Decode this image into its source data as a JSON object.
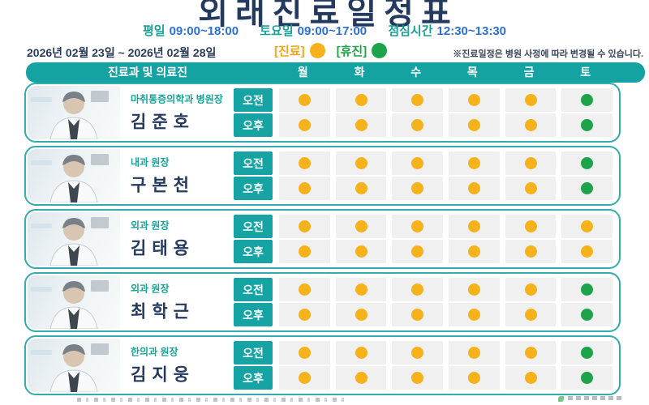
{
  "header": {
    "title": "외래진료일정표",
    "hours": [
      {
        "label": "평일",
        "time": "09:00~18:00"
      },
      {
        "label": "토요일",
        "time": "09:00~17:00"
      },
      {
        "label": "점심시간",
        "time": "12:30~13:30"
      }
    ],
    "date_range": "2026년 02월 23일 ~ 2026년 02월 28일",
    "legend": [
      {
        "label": "[진료]",
        "status": "진료",
        "color": "#F6B21B"
      },
      {
        "label": "[휴진]",
        "status": "휴진",
        "color": "#1DA34A"
      }
    ],
    "notice": "※진료일정은 병원 사정에 따라 변경될 수 있습니다."
  },
  "table": {
    "staff_header": "진료과 및 의료진",
    "days": [
      "월",
      "화",
      "수",
      "목",
      "금",
      "토"
    ]
  },
  "doctors": [
    {
      "dept_title": "마취통증의학과 병원장",
      "name": "김준호",
      "sessions": [
        {
          "label": "오전",
          "slots": [
            "진료",
            "진료",
            "진료",
            "진료",
            "진료",
            "휴진"
          ]
        },
        {
          "label": "오후",
          "slots": [
            "진료",
            "진료",
            "진료",
            "진료",
            "진료",
            "휴진"
          ]
        }
      ]
    },
    {
      "dept_title": "내과 원장",
      "name": "구본천",
      "sessions": [
        {
          "label": "오전",
          "slots": [
            "진료",
            "진료",
            "진료",
            "진료",
            "진료",
            "휴진"
          ]
        },
        {
          "label": "오후",
          "slots": [
            "진료",
            "진료",
            "진료",
            "진료",
            "진료",
            "휴진"
          ]
        }
      ]
    },
    {
      "dept_title": "외과 원장",
      "name": "김태용",
      "sessions": [
        {
          "label": "오전",
          "slots": [
            "진료",
            "진료",
            "진료",
            "진료",
            "진료",
            "진료"
          ]
        },
        {
          "label": "오후",
          "slots": [
            "진료",
            "진료",
            "진료",
            "진료",
            "진료",
            "진료"
          ]
        }
      ]
    },
    {
      "dept_title": "외과 원장",
      "name": "최학근",
      "sessions": [
        {
          "label": "오전",
          "slots": [
            "진료",
            "진료",
            "진료",
            "진료",
            "진료",
            "휴진"
          ]
        },
        {
          "label": "오후",
          "slots": [
            "진료",
            "진료",
            "진료",
            "진료",
            "진료",
            "휴진"
          ]
        }
      ]
    },
    {
      "dept_title": "한의과 원장",
      "name": "김지웅",
      "sessions": [
        {
          "label": "오전",
          "slots": [
            "진료",
            "진료",
            "진료",
            "진료",
            "진료",
            "휴진"
          ]
        },
        {
          "label": "오후",
          "slots": [
            "진료",
            "진료",
            "진료",
            "진료",
            "진료",
            "휴진"
          ]
        }
      ]
    }
  ],
  "colors": {
    "status": {
      "진료": "#F6B21B",
      "휴진": "#1DA34A"
    },
    "accent_teal": "#14A3A2",
    "title_navy": "#24395E",
    "time_blue": "#2D6FD2"
  }
}
